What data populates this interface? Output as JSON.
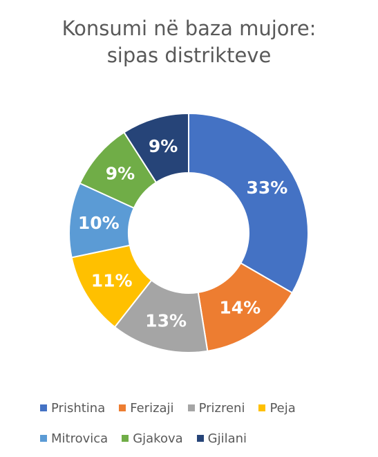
{
  "chart_data": {
    "type": "pie",
    "variant": "donut",
    "title": "Konsumi në baza mujore: sipas distrikteve",
    "title_lines": [
      "Konsumi në baza mujore:",
      "sipas distrikteve"
    ],
    "legend_position": "bottom",
    "slices": [
      {
        "name": "Prishtina",
        "value": 33,
        "label": "33%",
        "color": "#4472C4"
      },
      {
        "name": "Ferizaji",
        "value": 14,
        "label": "14%",
        "color": "#ED7D31"
      },
      {
        "name": "Prizreni",
        "value": 13,
        "label": "13%",
        "color": "#A5A5A5"
      },
      {
        "name": "Peja",
        "value": 11,
        "label": "11%",
        "color": "#FFC000"
      },
      {
        "name": "Mitrovica",
        "value": 10,
        "label": "10%",
        "color": "#5B9BD5"
      },
      {
        "name": "Gjakova",
        "value": 9,
        "label": "9%",
        "color": "#70AD47"
      },
      {
        "name": "Gjilani",
        "value": 9,
        "label": "9%",
        "color": "#264478"
      }
    ]
  }
}
